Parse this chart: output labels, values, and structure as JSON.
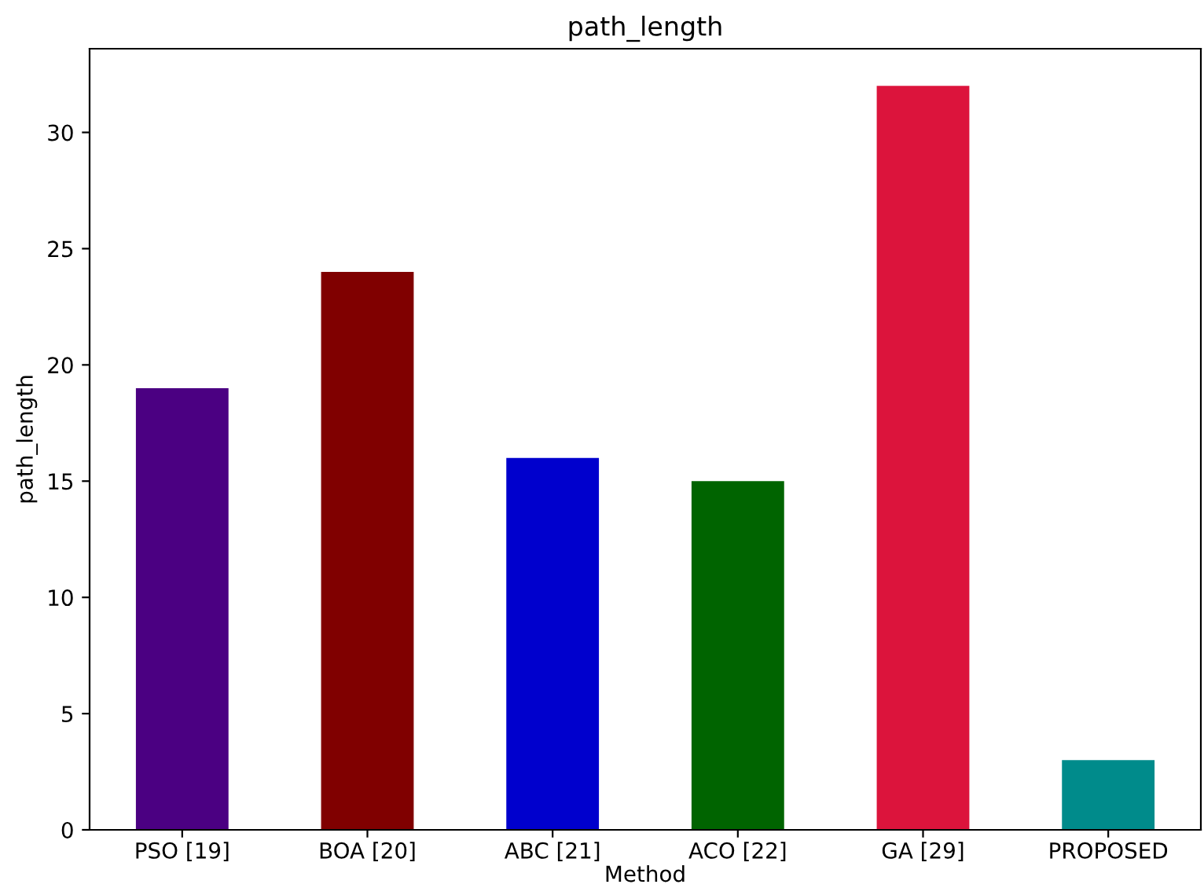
{
  "chart_data": {
    "type": "bar",
    "title": "path_length",
    "xlabel": "Method",
    "ylabel": "path_length",
    "categories": [
      "PSO [19]",
      "BOA [20]",
      "ABC [21]",
      "ACO [22]",
      "GA [29]",
      "PROPOSED"
    ],
    "values": [
      19,
      24,
      16,
      15,
      32,
      3
    ],
    "colors": [
      "#4b0082",
      "#800000",
      "#0000cd",
      "#006400",
      "#dc143c",
      "#008b8b"
    ],
    "ylim": [
      0,
      33.6
    ],
    "yticks": [
      0,
      5,
      10,
      15,
      20,
      25,
      30
    ],
    "grid": false,
    "legend": false
  }
}
